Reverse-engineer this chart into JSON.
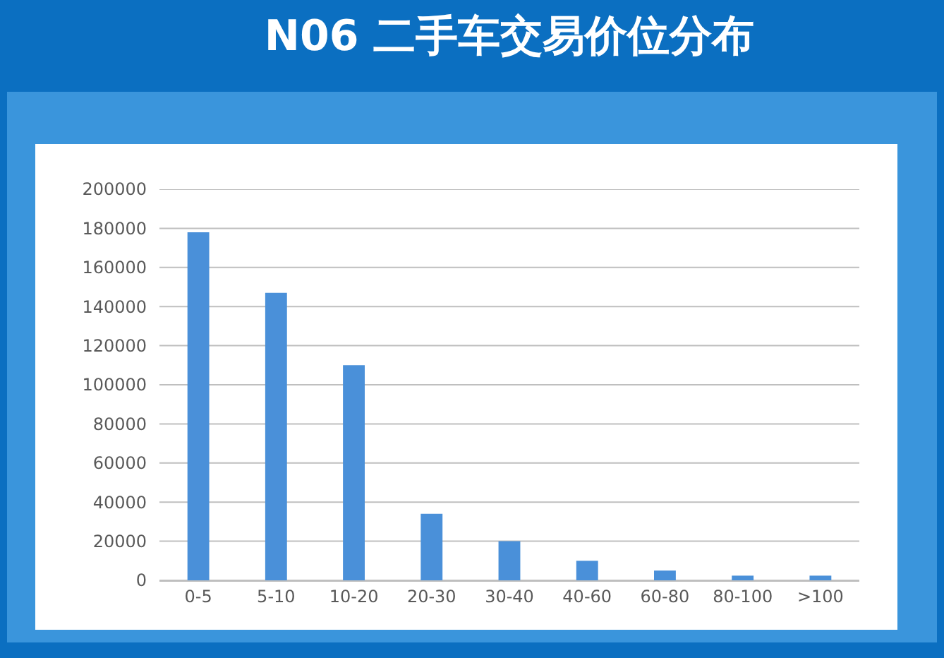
{
  "chart_data": {
    "type": "bar",
    "title": "N06 二手车交易价位分布",
    "categories": [
      "0-5",
      "5-10",
      "10-20",
      "20-30",
      "30-40",
      "40-60",
      "60-80",
      "80-100",
      ">100"
    ],
    "values": [
      178000,
      147000,
      110000,
      34000,
      20000,
      10000,
      5000,
      2400,
      2400
    ],
    "color": "#4a90d9",
    "ylim": [
      0,
      200000
    ],
    "yticks": [
      0,
      20000,
      40000,
      60000,
      80000,
      100000,
      120000,
      140000,
      160000,
      180000,
      200000
    ],
    "grid": "y"
  }
}
